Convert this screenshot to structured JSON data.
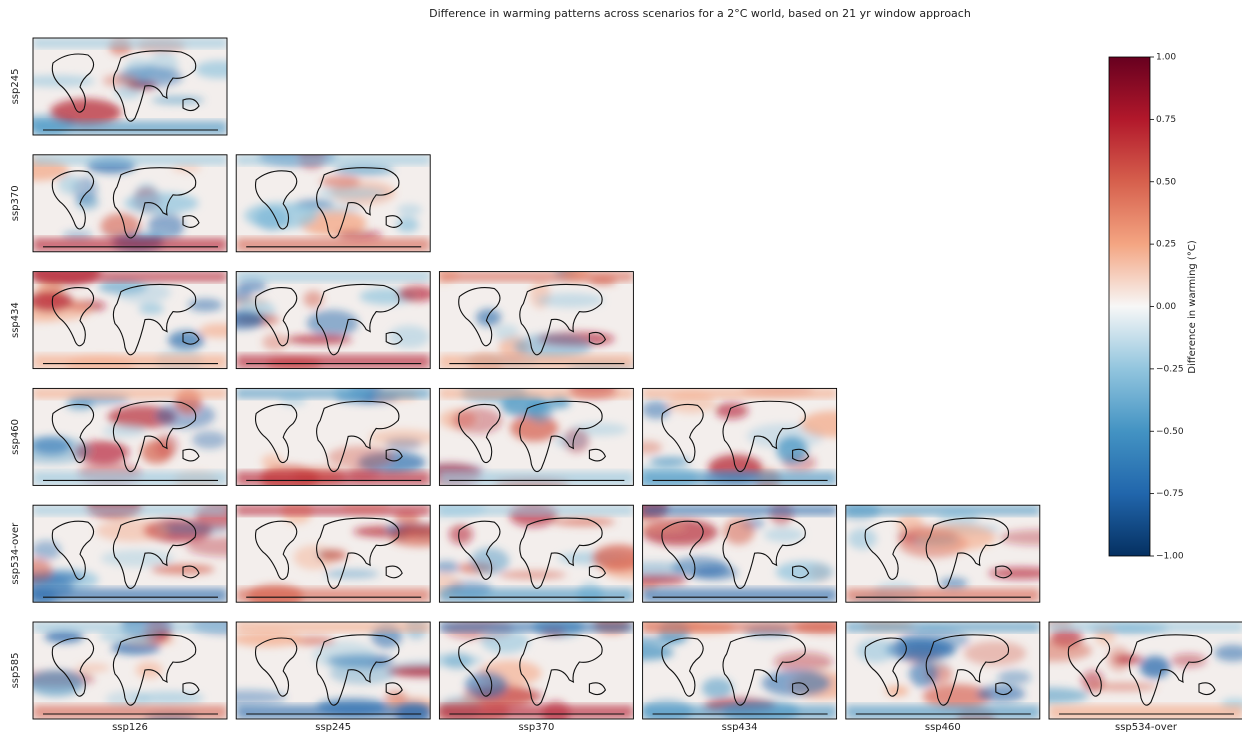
{
  "chart_data": {
    "type": "map_grid",
    "title": "Difference in warming patterns across scenarios for a 2°C world, based on 21 yr window approach",
    "rows": [
      "ssp245",
      "ssp370",
      "ssp434",
      "ssp460",
      "ssp534-over",
      "ssp585"
    ],
    "columns": [
      "ssp126",
      "ssp245",
      "ssp370",
      "ssp434",
      "ssp460",
      "ssp534-over"
    ],
    "colorbar_label": "Difference in warming (°C)",
    "clim": [
      -1,
      1
    ],
    "colorbar_ticks": [
      {
        "value": -1,
        "label": "−1.00"
      },
      {
        "value": -0.75,
        "label": "−0.75"
      },
      {
        "value": -0.5,
        "label": "−0.50"
      },
      {
        "value": -0.25,
        "label": "−0.25"
      },
      {
        "value": 0,
        "label": "0.00"
      },
      {
        "value": 0.25,
        "label": "0.25"
      },
      {
        "value": 0.5,
        "label": "0.50"
      },
      {
        "value": 0.75,
        "label": "0.75"
      },
      {
        "value": 1,
        "label": "1.00"
      }
    ]
  }
}
